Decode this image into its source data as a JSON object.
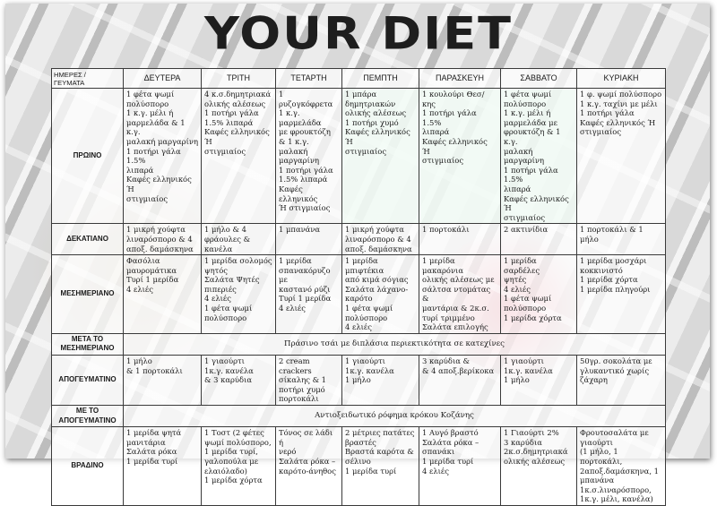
{
  "title": "YOUR DIET",
  "corner_label": "ΗΜΕΡΕΣ /\nΓΕΥΜΑΤΑ",
  "days": [
    "ΔΕΥΤΕΡΑ",
    "ΤΡΙΤΗ",
    "ΤΕΤΑΡΤΗ",
    "ΠΕΜΠΤΗ",
    "ΠΑΡΑΣΚΕΥΗ",
    "ΣΑΒΒΑΤΟ",
    "ΚΥΡΙΑΚΗ"
  ],
  "meals": {
    "breakfast": {
      "label": "ΠΡΩΙΝΟ",
      "cells": [
        "1 φέτα ψωμί\nπολύσπορο\n1 κ.γ. μέλι ή\nμαρμελάδα & 1 κ.γ.\nμαλακή μαργαρίνη\n1 ποτήρι γάλα 1.5%\nλιπαρά\nΚαφές ελληνικός Ή\nστιγμιαίος",
        "4 κ.σ.δημητριακά\nολικής αλέσεως\n1 ποτήρι γάλα\n1.5% λιπαρά\nΚαφές ελληνικός Ή\nστιγμιαίος",
        "1 ρυζογκόφρετα\n1 κ.γ. μαρμελάδα\nμε φρουκτόζη\n& 1 κ.γ. μαλακή\nμαργαρίνη\n1 ποτήρι γάλα\n1.5% λιπαρά\nΚαφές ελληνικός\nΉ στιγμιαίος",
        "1 μπάρα\nδημητριακών\nολικής αλέσεως\n1 ποτήρι χυμό\nΚαφές ελληνικός Ή\nστιγμιαίος",
        "1 κουλούρι Θεσ/κης\n1 ποτήρι γάλα 1.5%\nλιπαρά\nΚαφές ελληνικός Ή\nστιγμιαίος",
        "1 φέτα ψωμί\nπολύσπορο\n1 κ.γ. μέλι ή\nμαρμελάδα με\nφρουκτόζη & 1 κ.γ.\nμαλακή μαργαρίνη\n1 ποτήρι γάλα 1.5%\nλιπαρά\nΚαφές ελληνικός Ή\nστιγμιαίος",
        "1 φ. ψωμί πολύσπορο\n1 κ.γ. ταχίνι με μέλι\n1 ποτήρι γάλα\nΚαφές ελληνικός Ή\nστιγμιαίος"
      ]
    },
    "snack1": {
      "label": "ΔΕΚΑΤΙΑΝΟ",
      "cells": [
        "1 μικρή χούφτα\nλιναρόσπορο & 4\nαποξ. δαμάσκηνα",
        "1 μήλο & 4\nφράουλες &\nκανέλα",
        "1 μπανάνα",
        "1 μικρή χούφτα\nλιναρόσπορο & 4\nαποξ. δαμάσκηνα",
        "1 πορτοκάλι",
        "2 ακτινίδια",
        "1 πορτοκάλι & 1 μήλο"
      ]
    },
    "lunch": {
      "label": "ΜΕΣΗΜΕΡΙΑΝΟ",
      "cells": [
        "Φασόλια\nμαυρομάτικα\nΤυρί 1 μερίδα\n4 ελιές",
        "1 μερίδα σολομός\nψητός\nΣαλάτα Ψητές\nπιπεριές\n4 ελιές\n1 φέτα ψωμί\nπολύσπορο",
        "1 μερίδα\nσπανακόρυζο με\nκαστανό ρύζι\nΤυρί 1 μερίδα\n4 ελιές",
        "1 μερίδα μπιφτέκια\nαπό κιμά σόγιας\nΣαλάτα λάχανο-\nκαρότο\n1 φέτα ψωμί\nπολύσπορο\n4 ελιές",
        "1 μερίδα μακαρόνια\nολικής αλέσεως με\nσάλτσα ντομάτας &\nμαντάρια & 2κ.σ.\nτυρί τριμμένο\nΣαλάτα επιλογής",
        "1 μερίδα σαρδέλες\nψητές\n4 ελιές\n1 φέτα ψωμί\nπολύσπορο\n1 μερίδα χόρτα",
        "1 μερίδα μοσχάρι\nκοκκινιστό\n1 μερίδα χόρτα\n1 μερίδα πληγούρι"
      ]
    },
    "after_lunch": {
      "label": "ΜΕΤΑ ΤΟ\nΜΕΣΗΜΕΡΙΑΝΟ",
      "text": "Πράσινο τσάι με διπλάσια περιεκτικότητα σε κατεχίνες"
    },
    "afternoon": {
      "label": "ΑΠΟΓΕΥΜΑΤΙΝΟ",
      "cells": [
        "1 μήλο\n& 1 πορτοκάλι",
        "1 γιαούρτι\n1κ.γ. κανέλα\n& 3 καρύδια",
        "2 cream crackers\nσίκαλης & 1\nποτήρι χυμό\nπορτοκάλι",
        "1 γιαούρτι\n1κ.γ. κανέλα\n1 μήλο",
        "3 καρύδια &\n& 4 αποξ.βερίκοκα",
        "1 γιαούρτι\n1κ.γ. κανέλα\n1 μήλο",
        "50γρ. σοκολάτα  με\nγλυκαντικό χωρίς\nζάχαρη"
      ]
    },
    "after_afternoon": {
      "label": "ΜΕ ΤΟ\nΑΠΟΓΕΥΜΑΤΙΝΟ",
      "text": "Αντιοξειδωτικό ρόφημα κρόκου Κοζάνης"
    },
    "dinner": {
      "label": "ΒΡΑΔΙΝΟ",
      "cells": [
        "1 μερίδα ψητά\nμανιτάρια\nΣαλάτα ρόκα\n1 μερίδα τυρί",
        "1 Τοστ (2 φέτες\nψωμί πολύσπορο,\n1 μερίδα τυρί,\nγαλοπούλα με\nελαιόλαδο)\n1 μερίδα χόρτα",
        "Τόνος σε λάδι ή\nνερό\nΣαλάτα ρόκα –\nκαρότο-άνηθος",
        "2 μέτριες πατάτες\nβραστές\nΒραστά καρότα &\nσέλινο\n1 μερίδα τυρί",
        "1 Αυγό βραστό\nΣαλάτα ρόκα –\nσπανάκι\n1 μερίδα τυρί\n4 ελιές",
        "1 Γιαούρτι 2%\n3 καρύδια\n2κ.σ.δημητριακά\nολικής αλέσεως",
        "Φρουτοσαλάτα με\nγιαούρτι\n(1 μήλο, 1 πορτοκάλι,\n2αποξ.δαμάσκηνα, 1\nμπανάνα\n1κ.σ.λιναρόσπορο,\n1κ.γ. μέλι, κανέλα)"
      ]
    }
  }
}
